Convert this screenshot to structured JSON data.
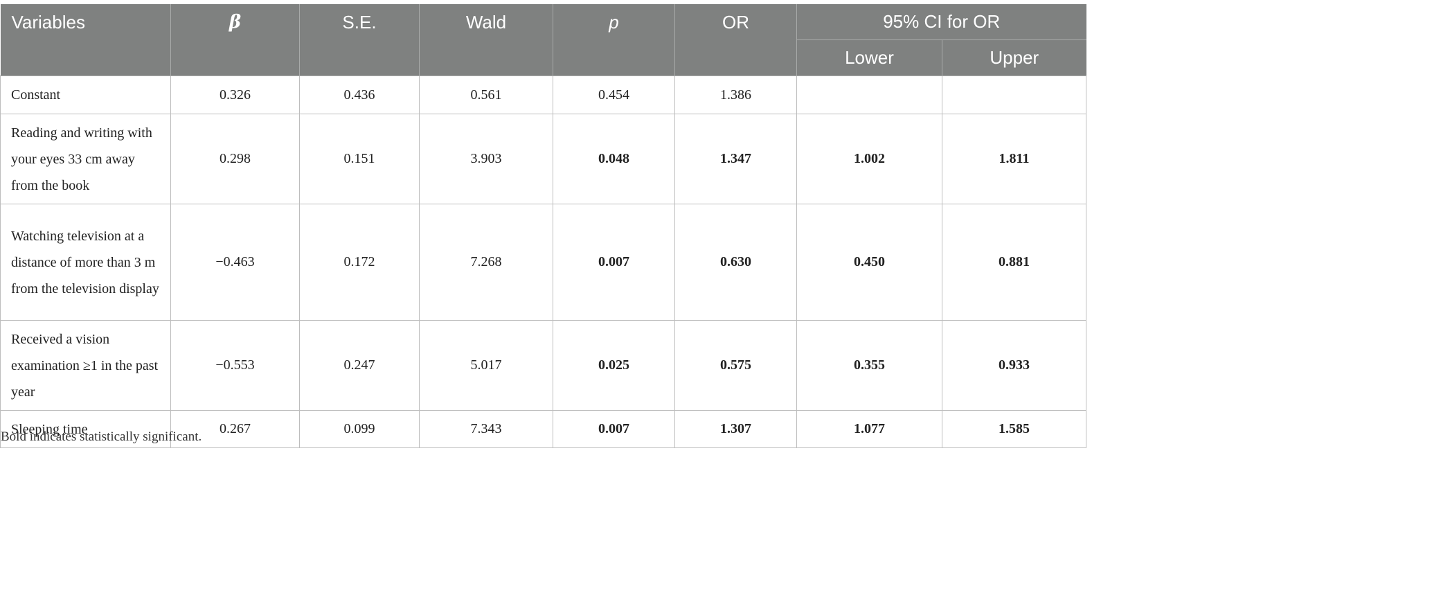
{
  "table": {
    "headers": {
      "variables": "Variables",
      "beta": "β",
      "se": "S.E.",
      "wald": "Wald",
      "p": "p",
      "or": "OR",
      "ci": "95% CI for OR",
      "lower": "Lower",
      "upper": "Upper"
    },
    "rows": [
      {
        "variable": "Constant",
        "beta": "0.326",
        "se": "0.436",
        "wald": "0.561",
        "p": "0.454",
        "or": "1.386",
        "lower": "",
        "upper": ""
      },
      {
        "variable": "Reading and writing with your eyes 33 cm away from the book",
        "beta": "0.298",
        "se": "0.151",
        "wald": "3.903",
        "p": "0.048",
        "or": "1.347",
        "lower": "1.002",
        "upper": "1.811"
      },
      {
        "variable": "Watching television at a distance of more than 3 m from the television display",
        "beta": "−0.463",
        "se": "0.172",
        "wald": "7.268",
        "p": "0.007",
        "or": "0.630",
        "lower": "0.450",
        "upper": "0.881"
      },
      {
        "variable": "Received a vision examination ≥1 in the past year",
        "beta": "−0.553",
        "se": "0.247",
        "wald": "5.017",
        "p": "0.025",
        "or": "0.575",
        "lower": "0.355",
        "upper": "0.933"
      },
      {
        "variable": "Sleeping time",
        "beta": "0.267",
        "se": "0.099",
        "wald": "7.343",
        "p": "0.007",
        "or": "1.307",
        "lower": "1.077",
        "upper": "1.585"
      }
    ]
  },
  "footnote": "Bold indicates statistically significant."
}
